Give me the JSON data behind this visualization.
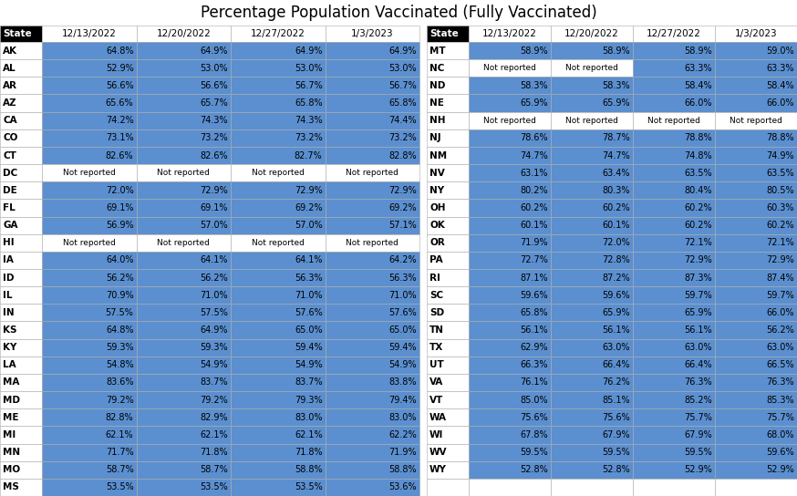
{
  "title": "Percentage Population Vaccinated (Fully Vaccinated)",
  "columns": [
    "12/13/2022",
    "12/20/2022",
    "12/27/2022",
    "1/3/2023"
  ],
  "left_states": [
    {
      "state": "AK",
      "values": [
        "64.8%",
        "64.9%",
        "64.9%",
        "64.9%"
      ]
    },
    {
      "state": "AL",
      "values": [
        "52.9%",
        "53.0%",
        "53.0%",
        "53.0%"
      ]
    },
    {
      "state": "AR",
      "values": [
        "56.6%",
        "56.6%",
        "56.7%",
        "56.7%"
      ]
    },
    {
      "state": "AZ",
      "values": [
        "65.6%",
        "65.7%",
        "65.8%",
        "65.8%"
      ]
    },
    {
      "state": "CA",
      "values": [
        "74.2%",
        "74.3%",
        "74.3%",
        "74.4%"
      ]
    },
    {
      "state": "CO",
      "values": [
        "73.1%",
        "73.2%",
        "73.2%",
        "73.2%"
      ]
    },
    {
      "state": "CT",
      "values": [
        "82.6%",
        "82.6%",
        "82.7%",
        "82.8%"
      ]
    },
    {
      "state": "DC",
      "values": [
        "Not reported",
        "Not reported",
        "Not reported",
        "Not reported"
      ]
    },
    {
      "state": "DE",
      "values": [
        "72.0%",
        "72.9%",
        "72.9%",
        "72.9%"
      ]
    },
    {
      "state": "FL",
      "values": [
        "69.1%",
        "69.1%",
        "69.2%",
        "69.2%"
      ]
    },
    {
      "state": "GA",
      "values": [
        "56.9%",
        "57.0%",
        "57.0%",
        "57.1%"
      ]
    },
    {
      "state": "HI",
      "values": [
        "Not reported",
        "Not reported",
        "Not reported",
        "Not reported"
      ]
    },
    {
      "state": "IA",
      "values": [
        "64.0%",
        "64.1%",
        "64.1%",
        "64.2%"
      ]
    },
    {
      "state": "ID",
      "values": [
        "56.2%",
        "56.2%",
        "56.3%",
        "56.3%"
      ]
    },
    {
      "state": "IL",
      "values": [
        "70.9%",
        "71.0%",
        "71.0%",
        "71.0%"
      ]
    },
    {
      "state": "IN",
      "values": [
        "57.5%",
        "57.5%",
        "57.6%",
        "57.6%"
      ]
    },
    {
      "state": "KS",
      "values": [
        "64.8%",
        "64.9%",
        "65.0%",
        "65.0%"
      ]
    },
    {
      "state": "KY",
      "values": [
        "59.3%",
        "59.3%",
        "59.4%",
        "59.4%"
      ]
    },
    {
      "state": "LA",
      "values": [
        "54.8%",
        "54.9%",
        "54.9%",
        "54.9%"
      ]
    },
    {
      "state": "MA",
      "values": [
        "83.6%",
        "83.7%",
        "83.7%",
        "83.8%"
      ]
    },
    {
      "state": "MD",
      "values": [
        "79.2%",
        "79.2%",
        "79.3%",
        "79.4%"
      ]
    },
    {
      "state": "ME",
      "values": [
        "82.8%",
        "82.9%",
        "83.0%",
        "83.0%"
      ]
    },
    {
      "state": "MI",
      "values": [
        "62.1%",
        "62.1%",
        "62.1%",
        "62.2%"
      ]
    },
    {
      "state": "MN",
      "values": [
        "71.7%",
        "71.8%",
        "71.8%",
        "71.9%"
      ]
    },
    {
      "state": "MO",
      "values": [
        "58.7%",
        "58.7%",
        "58.8%",
        "58.8%"
      ]
    },
    {
      "state": "MS",
      "values": [
        "53.5%",
        "53.5%",
        "53.5%",
        "53.6%"
      ]
    }
  ],
  "right_states": [
    {
      "state": "MT",
      "values": [
        "58.9%",
        "58.9%",
        "58.9%",
        "59.0%"
      ]
    },
    {
      "state": "NC",
      "values": [
        "Not reported",
        "Not reported",
        "63.3%",
        "63.3%"
      ]
    },
    {
      "state": "ND",
      "values": [
        "58.3%",
        "58.3%",
        "58.4%",
        "58.4%"
      ]
    },
    {
      "state": "NE",
      "values": [
        "65.9%",
        "65.9%",
        "66.0%",
        "66.0%"
      ]
    },
    {
      "state": "NH",
      "values": [
        "Not reported",
        "Not reported",
        "Not reported",
        "Not reported"
      ]
    },
    {
      "state": "NJ",
      "values": [
        "78.6%",
        "78.7%",
        "78.8%",
        "78.8%"
      ]
    },
    {
      "state": "NM",
      "values": [
        "74.7%",
        "74.7%",
        "74.8%",
        "74.9%"
      ]
    },
    {
      "state": "NV",
      "values": [
        "63.1%",
        "63.4%",
        "63.5%",
        "63.5%"
      ]
    },
    {
      "state": "NY",
      "values": [
        "80.2%",
        "80.3%",
        "80.4%",
        "80.5%"
      ]
    },
    {
      "state": "OH",
      "values": [
        "60.2%",
        "60.2%",
        "60.2%",
        "60.3%"
      ]
    },
    {
      "state": "OK",
      "values": [
        "60.1%",
        "60.1%",
        "60.2%",
        "60.2%"
      ]
    },
    {
      "state": "OR",
      "values": [
        "71.9%",
        "72.0%",
        "72.1%",
        "72.1%"
      ]
    },
    {
      "state": "PA",
      "values": [
        "72.7%",
        "72.8%",
        "72.9%",
        "72.9%"
      ]
    },
    {
      "state": "RI",
      "values": [
        "87.1%",
        "87.2%",
        "87.3%",
        "87.4%"
      ]
    },
    {
      "state": "SC",
      "values": [
        "59.6%",
        "59.6%",
        "59.7%",
        "59.7%"
      ]
    },
    {
      "state": "SD",
      "values": [
        "65.8%",
        "65.9%",
        "65.9%",
        "66.0%"
      ]
    },
    {
      "state": "TN",
      "values": [
        "56.1%",
        "56.1%",
        "56.1%",
        "56.2%"
      ]
    },
    {
      "state": "TX",
      "values": [
        "62.9%",
        "63.0%",
        "63.0%",
        "63.0%"
      ]
    },
    {
      "state": "UT",
      "values": [
        "66.3%",
        "66.4%",
        "66.4%",
        "66.5%"
      ]
    },
    {
      "state": "VA",
      "values": [
        "76.1%",
        "76.2%",
        "76.3%",
        "76.3%"
      ]
    },
    {
      "state": "VT",
      "values": [
        "85.0%",
        "85.1%",
        "85.2%",
        "85.3%"
      ]
    },
    {
      "state": "WA",
      "values": [
        "75.6%",
        "75.6%",
        "75.7%",
        "75.7%"
      ]
    },
    {
      "state": "WI",
      "values": [
        "67.8%",
        "67.9%",
        "67.9%",
        "68.0%"
      ]
    },
    {
      "state": "WV",
      "values": [
        "59.5%",
        "59.5%",
        "59.5%",
        "59.6%"
      ]
    },
    {
      "state": "WY",
      "values": [
        "52.8%",
        "52.8%",
        "52.9%",
        "52.9%"
      ]
    },
    {
      "state": "",
      "values": [
        "",
        "",
        "",
        ""
      ]
    }
  ],
  "cell_bg_blue": "#5b8fcf",
  "cell_bg_white": "#ffffff",
  "state_col_bg": "#ffffff",
  "state_col_fg": "#000000",
  "header_state_bg": "#000000",
  "header_state_fg": "#ffffff",
  "header_date_bg": "#ffffff",
  "header_date_fg": "#000000",
  "cell_border_color": "#aaaaaa",
  "title_fontsize": 12,
  "cell_fontsize": 7.0,
  "header_fontsize": 7.5,
  "state_fontsize": 7.5
}
